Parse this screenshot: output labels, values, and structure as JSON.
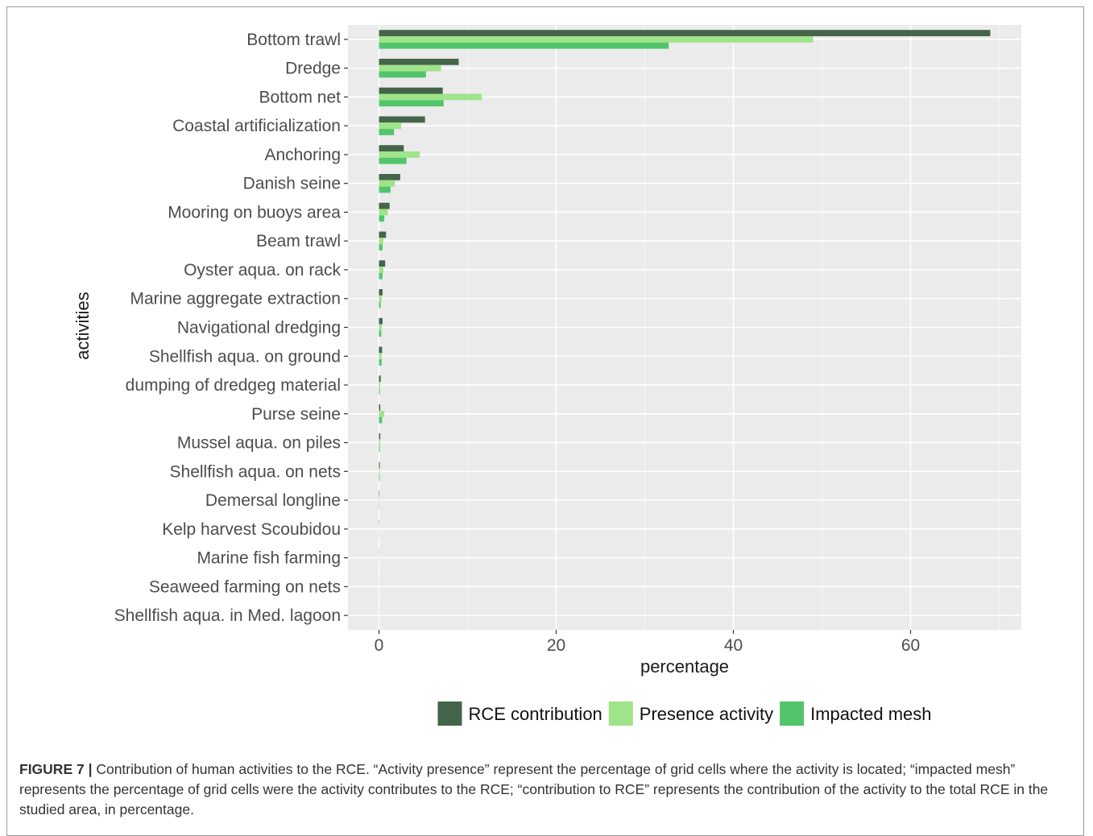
{
  "chart_data": {
    "type": "bar",
    "orientation": "horizontal",
    "xlabel": "percentage",
    "ylabel": "activities",
    "xlim": [
      -3.5,
      72.5
    ],
    "xticks": [
      0,
      20,
      40,
      60
    ],
    "grid": true,
    "legend_position": "bottom",
    "categories": [
      "Bottom trawl",
      "Dredge",
      "Bottom net",
      "Coastal artificialization",
      "Anchoring",
      "Danish seine",
      "Mooring on buoys area",
      "Beam trawl",
      "Oyster aqua. on rack",
      "Marine aggregate extraction",
      "Navigational dredging",
      "Shellfish aqua. on ground",
      "dumping of dredgeg material",
      "Purse seine",
      "Mussel aqua. on piles",
      "Shellfish aqua. on nets",
      "Demersal longline",
      "Kelp harvest Scoubidou",
      "Marine fish farming",
      "Seaweed farming on nets",
      "Shellfish aqua. in Med. lagoon"
    ],
    "series": [
      {
        "name": "RCE contribution",
        "color": "#44654a",
        "values": [
          69.0,
          9.0,
          7.2,
          5.2,
          2.8,
          2.4,
          1.2,
          0.8,
          0.7,
          0.4,
          0.4,
          0.35,
          0.2,
          0.15,
          0.15,
          0.1,
          0.05,
          0.03,
          0.02,
          0.01,
          0.01
        ]
      },
      {
        "name": "Presence activity",
        "color": "#9fe38a",
        "values": [
          49.0,
          7.0,
          11.6,
          2.5,
          4.6,
          1.8,
          1.0,
          0.5,
          0.5,
          0.3,
          0.3,
          0.3,
          0.15,
          0.6,
          0.15,
          0.1,
          0.05,
          0.03,
          0.02,
          0.01,
          0.01
        ]
      },
      {
        "name": "Impacted mesh",
        "color": "#52c56a",
        "values": [
          32.7,
          5.3,
          7.3,
          1.7,
          3.1,
          1.3,
          0.6,
          0.4,
          0.4,
          0.2,
          0.25,
          0.3,
          0.1,
          0.35,
          0.1,
          0.08,
          0.04,
          0.02,
          0.01,
          0.01,
          0.01
        ]
      }
    ]
  },
  "caption": {
    "label": "FIGURE 7 |",
    "text": " Contribution of human activities to the RCE. “Activity presence” represent the percentage of grid cells where the activity is located; “impacted mesh” represents the percentage of grid cells were the activity contributes to the RCE; “contribution to RCE” represents the contribution of the activity to the total RCE in the studied area, in percentage."
  },
  "colors": {
    "panel_background": "#ebebeb",
    "grid_major": "#ffffff",
    "axis_text": "#4d4d4d",
    "axis_title": "#1a1a1a"
  }
}
